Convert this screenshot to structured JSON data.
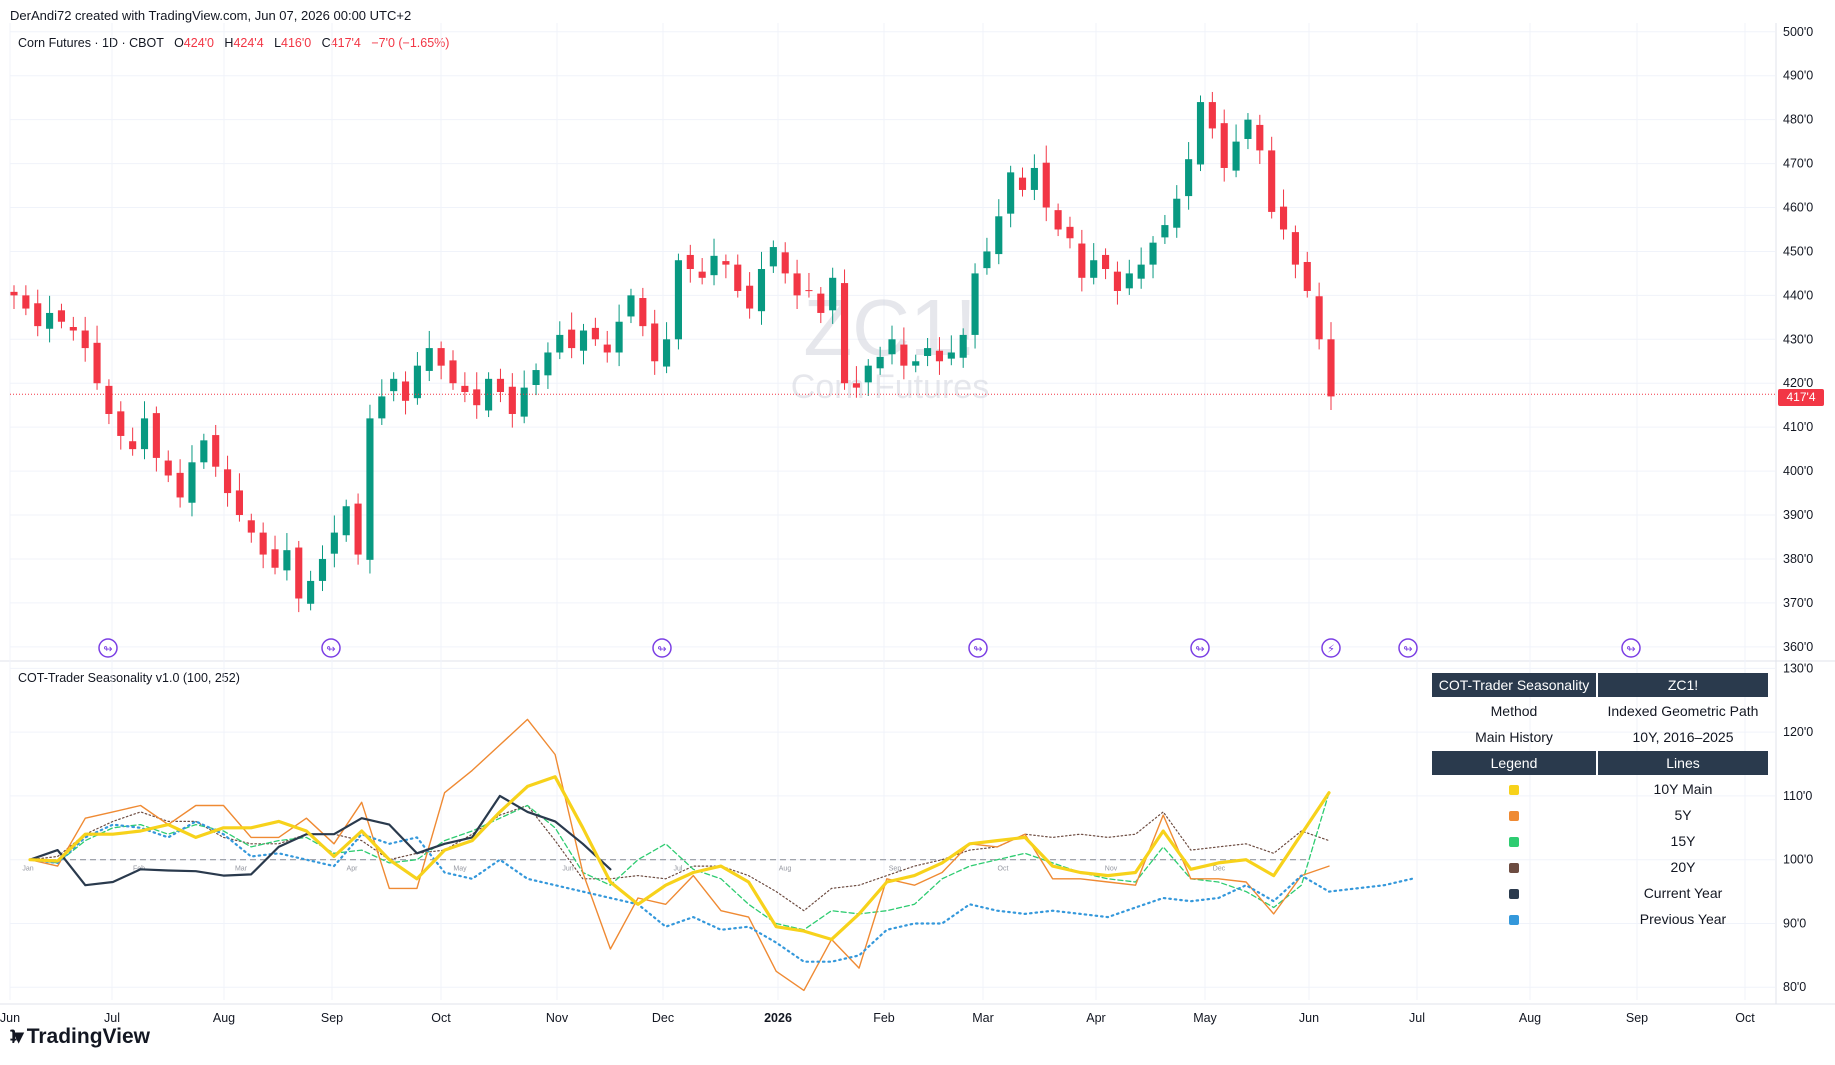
{
  "header": {
    "credit": "DerAndi72 created with TradingView.com, Jun 07, 2026 00:00 UTC+2"
  },
  "price_legend": {
    "symbol": "Corn Futures · 1D · CBOT",
    "o_label": "O",
    "o_value": "424'0",
    "h_label": "H",
    "h_value": "424'4",
    "l_label": "L",
    "l_value": "416'0",
    "c_label": "C",
    "c_value": "417'4",
    "change": "−7'0 (−1.65%)"
  },
  "watermark": {
    "symbol": "ZC1!",
    "name": "Corn Futures"
  },
  "last_price_tag": "417'4",
  "indicator_legend": "COT-Trader Seasonality v1.0 (100, 252)",
  "footer": {
    "brand": "TradingView"
  },
  "info_table": {
    "header_left": "COT-Trader Seasonality",
    "header_right": "ZC1!",
    "rows": [
      {
        "k": "Method",
        "v": "Indexed Geometric Path"
      },
      {
        "k": "Main History",
        "v": "10Y, 2016–2025"
      }
    ],
    "legend_header_left": "Legend",
    "legend_header_right": "Lines",
    "legend": [
      {
        "color": "#f7d21b",
        "label": "10Y Main"
      },
      {
        "color": "#ef8a33",
        "label": "5Y"
      },
      {
        "color": "#2ecc71",
        "label": "15Y"
      },
      {
        "color": "#6d4c41",
        "label": "20Y"
      },
      {
        "color": "#2a3a4d",
        "label": "Current Year"
      },
      {
        "color": "#3498db",
        "label": "Previous Year"
      }
    ]
  },
  "colors": {
    "up": "#089981",
    "down": "#f23645",
    "event": "#7b3fe4"
  },
  "chart_data": [
    {
      "type": "candlestick",
      "title": "Corn Futures · 1D · CBOT",
      "ylim": [
        357,
        502
      ],
      "y_ticks": [
        "500'0",
        "490'0",
        "480'0",
        "470'0",
        "460'0",
        "450'0",
        "440'0",
        "430'0",
        "420'0",
        "410'0",
        "400'0",
        "390'0",
        "380'0",
        "370'0",
        "360'0"
      ],
      "x_ticks": [
        "Jun",
        "Jul",
        "Aug",
        "Sep",
        "Oct",
        "Nov",
        "Dec",
        "2026",
        "Feb",
        "Mar",
        "Apr",
        "May",
        "Jun",
        "Jul",
        "Aug",
        "Sep",
        "Oct"
      ],
      "close_path": [
        440,
        437,
        433,
        436,
        434,
        432,
        428,
        420,
        413,
        408,
        405,
        412,
        403,
        399,
        394,
        402,
        407,
        401,
        395,
        390,
        386,
        381,
        378,
        382,
        371,
        375,
        380,
        386,
        392,
        381,
        412,
        417,
        421,
        416,
        424,
        428,
        424,
        420,
        418,
        415,
        421,
        418,
        413,
        419,
        423,
        427,
        431,
        428,
        432,
        430,
        427,
        434,
        440,
        433,
        425,
        430,
        448,
        446,
        444,
        449,
        447,
        441,
        437,
        446,
        451,
        445,
        440,
        441,
        436,
        444,
        420,
        419,
        424,
        426,
        430,
        424,
        425,
        428,
        425,
        427,
        431,
        445,
        450,
        458,
        468,
        464,
        469,
        460,
        455,
        453,
        444,
        448,
        446,
        441,
        445,
        447,
        452,
        456,
        462,
        471,
        484,
        478,
        469,
        475,
        480,
        473,
        459,
        455,
        447,
        441,
        430,
        417
      ],
      "last": {
        "open": "424'0",
        "high": "424'4",
        "low": "416'0",
        "close": "417'4"
      }
    },
    {
      "type": "line",
      "title": "COT-Trader Seasonality v1.0 (100, 252)",
      "ylim": [
        78,
        131
      ],
      "y_ticks": [
        "130'0",
        "120'0",
        "110'0",
        "100'0",
        "90'0",
        "80'0"
      ],
      "inner_x_ticks": [
        "Jan",
        "Feb",
        "Mar",
        "Apr",
        "May",
        "Jun",
        "Jul",
        "Aug",
        "Sep",
        "Oct",
        "Nov",
        "Dec"
      ],
      "series": [
        {
          "name": "10Y Main",
          "color": "#f7d21b",
          "values": [
            100,
            99.8,
            104,
            104,
            104.5,
            105.5,
            103.5,
            105,
            105,
            106,
            104.5,
            100.5,
            104.5,
            100,
            97,
            101.5,
            103,
            107.5,
            111.5,
            113,
            105,
            96.5,
            93,
            96,
            98,
            99,
            96.5,
            89.5,
            88.8,
            87.5,
            91.5,
            96.5,
            97.5,
            99.5,
            102.5,
            103,
            103.5,
            99,
            98,
            97.5,
            98,
            104.5,
            98.5,
            99.5,
            100,
            97.5,
            104,
            110.5
          ]
        },
        {
          "name": "5Y",
          "color": "#ef8a33",
          "values": [
            100,
            99,
            106.5,
            107.5,
            108.5,
            105.5,
            108.5,
            108.5,
            103.5,
            103.5,
            106.5,
            102.5,
            109,
            95.5,
            95.5,
            110.5,
            114,
            118,
            122,
            116.5,
            98,
            86,
            94,
            93,
            97.5,
            92,
            91,
            82.5,
            79.5,
            87.5,
            83,
            97,
            96,
            98,
            102.5,
            102,
            104,
            97,
            97,
            96.5,
            96,
            107,
            97,
            97,
            96.5,
            91.5,
            97.5,
            99
          ]
        },
        {
          "name": "15Y",
          "color": "#2ecc71",
          "values": [
            100,
            99.5,
            103,
            105,
            105.5,
            104,
            105.5,
            104.5,
            102,
            103,
            103.5,
            101,
            101.5,
            99.5,
            100,
            103,
            104.5,
            106.5,
            108.5,
            105,
            98,
            96,
            100,
            102.5,
            98.5,
            97,
            93,
            90,
            89,
            92,
            91.5,
            92,
            93,
            97,
            99,
            100,
            101,
            99.5,
            98,
            97,
            96.5,
            102,
            97,
            96.5,
            95,
            92.5,
            96,
            110.5
          ]
        },
        {
          "name": "20Y",
          "color": "#6d4c41",
          "values": [
            100,
            100.5,
            104,
            106,
            107.5,
            106,
            106,
            103.5,
            102.5,
            102.5,
            104,
            104,
            103,
            100,
            101,
            101.5,
            104,
            107,
            108.5,
            103,
            97,
            97,
            97.5,
            97,
            99,
            99,
            97.5,
            95,
            92,
            95.5,
            96,
            97.5,
            99,
            100,
            101.5,
            102,
            104,
            103.5,
            104,
            103.5,
            104,
            107.5,
            101.5,
            102,
            102.5,
            101,
            104.5,
            103
          ]
        },
        {
          "name": "Current Year",
          "color": "#2a3a4d",
          "values": [
            100,
            101.5,
            96,
            96.5,
            98.5,
            98.3,
            98.2,
            97.5,
            97.7,
            102,
            104,
            104,
            106.5,
            105.5,
            101,
            102.5,
            103.5,
            110,
            107.5,
            106,
            102.5,
            98.5
          ]
        },
        {
          "name": "Previous Year",
          "color": "#3498db",
          "values": [
            100,
            99.5,
            103.5,
            105.5,
            105,
            103.5,
            106,
            104,
            100.5,
            101,
            100,
            99,
            104,
            102.5,
            103.5,
            98,
            97,
            100,
            97,
            96,
            95,
            94,
            93,
            89.5,
            91,
            89,
            89.5,
            87,
            84,
            84,
            85,
            89,
            90,
            90,
            93,
            92,
            91.5,
            92,
            91.5,
            91,
            92.5,
            94,
            93.5,
            94,
            96,
            93.5,
            97.5,
            95,
            95.5,
            96,
            97
          ]
        }
      ]
    }
  ]
}
